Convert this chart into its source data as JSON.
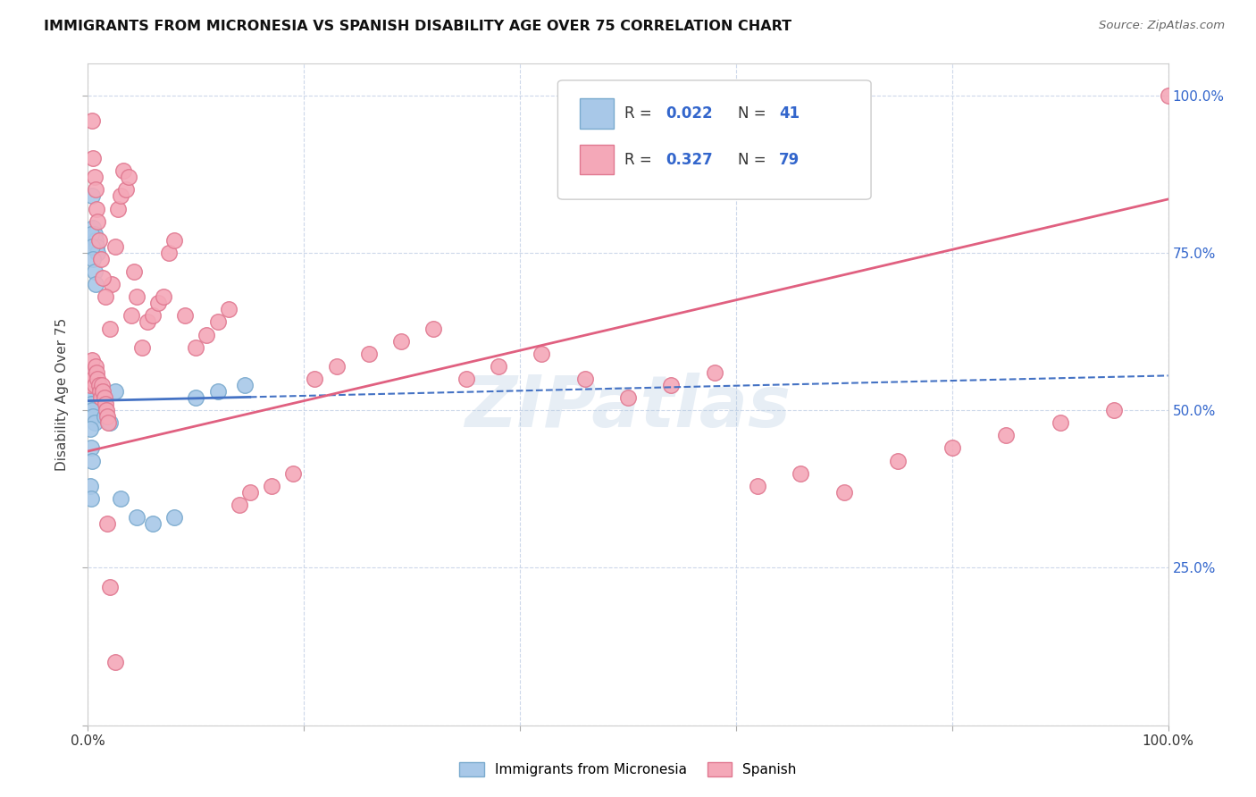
{
  "title": "IMMIGRANTS FROM MICRONESIA VS SPANISH DISABILITY AGE OVER 75 CORRELATION CHART",
  "source": "Source: ZipAtlas.com",
  "ylabel": "Disability Age Over 75",
  "micronesia_color": "#a8c8e8",
  "micronesia_edge": "#7aaace",
  "spanish_color": "#f4a8b8",
  "spanish_edge": "#e07890",
  "trend_micronesia_color": "#4472c4",
  "trend_spanish_color": "#e06080",
  "background_color": "#ffffff",
  "grid_color": "#c8d4e8",
  "watermark": "ZIPatlas",
  "watermark_color": "#b0c8e0",
  "legend_r1": "0.022",
  "legend_n1": "41",
  "legend_r2": "0.327",
  "legend_n2": "79",
  "legend_color": "#3366cc",
  "mic_x": [
    0.004,
    0.005,
    0.006,
    0.007,
    0.008,
    0.009,
    0.01,
    0.011,
    0.012,
    0.003,
    0.004,
    0.005,
    0.006,
    0.007,
    0.003,
    0.004,
    0.005,
    0.006,
    0.002,
    0.003,
    0.004,
    0.005,
    0.003,
    0.004,
    0.005,
    0.006,
    0.002,
    0.003,
    0.004,
    0.002,
    0.003,
    0.015,
    0.02,
    0.025,
    0.03,
    0.045,
    0.06,
    0.08,
    0.1,
    0.12,
    0.145
  ],
  "mic_y": [
    0.84,
    0.79,
    0.78,
    0.77,
    0.76,
    0.75,
    0.54,
    0.53,
    0.52,
    0.78,
    0.76,
    0.74,
    0.72,
    0.7,
    0.56,
    0.55,
    0.54,
    0.53,
    0.54,
    0.53,
    0.52,
    0.51,
    0.51,
    0.5,
    0.49,
    0.48,
    0.47,
    0.44,
    0.42,
    0.38,
    0.36,
    0.49,
    0.48,
    0.53,
    0.36,
    0.33,
    0.32,
    0.33,
    0.52,
    0.53,
    0.54
  ],
  "spa_x": [
    0.002,
    0.003,
    0.004,
    0.005,
    0.006,
    0.007,
    0.008,
    0.009,
    0.01,
    0.011,
    0.012,
    0.013,
    0.014,
    0.015,
    0.016,
    0.017,
    0.018,
    0.019,
    0.02,
    0.022,
    0.025,
    0.028,
    0.03,
    0.033,
    0.035,
    0.038,
    0.04,
    0.043,
    0.045,
    0.05,
    0.055,
    0.06,
    0.065,
    0.07,
    0.075,
    0.08,
    0.09,
    0.1,
    0.11,
    0.12,
    0.13,
    0.14,
    0.15,
    0.17,
    0.19,
    0.21,
    0.23,
    0.26,
    0.29,
    0.32,
    0.35,
    0.38,
    0.42,
    0.46,
    0.5,
    0.54,
    0.58,
    0.62,
    0.66,
    0.7,
    0.75,
    0.8,
    0.85,
    0.9,
    0.95,
    1.0,
    0.004,
    0.005,
    0.006,
    0.007,
    0.008,
    0.009,
    0.01,
    0.012,
    0.014,
    0.016,
    0.018,
    0.02,
    0.025
  ],
  "spa_y": [
    0.54,
    0.56,
    0.58,
    0.55,
    0.54,
    0.57,
    0.56,
    0.55,
    0.54,
    0.53,
    0.52,
    0.54,
    0.53,
    0.52,
    0.51,
    0.5,
    0.49,
    0.48,
    0.63,
    0.7,
    0.76,
    0.82,
    0.84,
    0.88,
    0.85,
    0.87,
    0.65,
    0.72,
    0.68,
    0.6,
    0.64,
    0.65,
    0.67,
    0.68,
    0.75,
    0.77,
    0.65,
    0.6,
    0.62,
    0.64,
    0.66,
    0.35,
    0.37,
    0.38,
    0.4,
    0.55,
    0.57,
    0.59,
    0.61,
    0.63,
    0.55,
    0.57,
    0.59,
    0.55,
    0.52,
    0.54,
    0.56,
    0.38,
    0.4,
    0.37,
    0.42,
    0.44,
    0.46,
    0.48,
    0.5,
    1.0,
    0.96,
    0.9,
    0.87,
    0.85,
    0.82,
    0.8,
    0.77,
    0.74,
    0.71,
    0.68,
    0.32,
    0.22,
    0.1
  ],
  "xlim": [
    0.0,
    1.0
  ],
  "ylim": [
    0.0,
    1.05
  ]
}
